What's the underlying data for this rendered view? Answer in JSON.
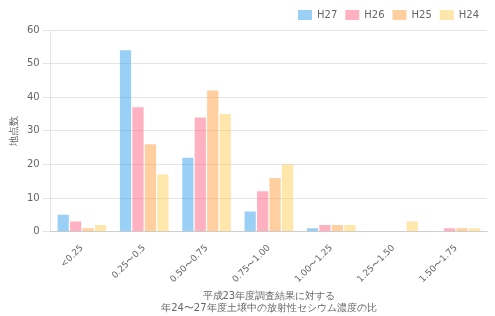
{
  "chart_data": {
    "type": "bar",
    "categories": [
      "<0.25",
      "0.25〜0.5",
      "0.50〜0.75",
      "0.75〜1.00",
      "1.00〜1.25",
      "1.25〜1.50",
      "1.50〜1.75"
    ],
    "series": [
      {
        "name": "H27",
        "values": [
          5,
          54,
          22,
          6,
          1,
          0,
          0
        ]
      },
      {
        "name": "H26",
        "values": [
          3,
          37,
          34,
          12,
          2,
          0,
          1
        ]
      },
      {
        "name": "H25",
        "values": [
          1,
          26,
          42,
          16,
          2,
          0,
          1
        ]
      },
      {
        "name": "H24",
        "values": [
          2,
          17,
          35,
          20,
          2,
          3,
          1
        ]
      }
    ],
    "ylabel": "地点数",
    "xlabel": "平成23年度調査結果に対する\n年24〜27年度土壌中の放射性セシウム濃度の比",
    "ylim": [
      0,
      60
    ],
    "yticks": [
      0,
      10,
      20,
      30,
      40,
      50,
      60
    ],
    "grid": true,
    "legend": "upper right"
  }
}
